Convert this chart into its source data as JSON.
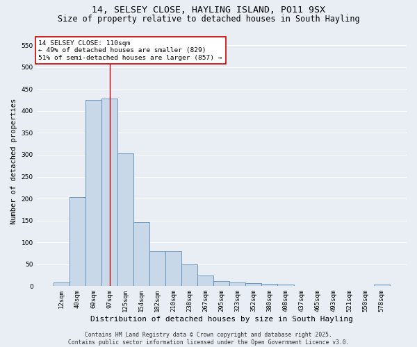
{
  "title_line1": "14, SELSEY CLOSE, HAYLING ISLAND, PO11 9SX",
  "title_line2": "Size of property relative to detached houses in South Hayling",
  "xlabel": "Distribution of detached houses by size in South Hayling",
  "ylabel": "Number of detached properties",
  "categories": [
    "12sqm",
    "40sqm",
    "69sqm",
    "97sqm",
    "125sqm",
    "154sqm",
    "182sqm",
    "210sqm",
    "238sqm",
    "267sqm",
    "295sqm",
    "323sqm",
    "352sqm",
    "380sqm",
    "408sqm",
    "437sqm",
    "465sqm",
    "493sqm",
    "521sqm",
    "550sqm",
    "578sqm"
  ],
  "values": [
    8,
    203,
    425,
    428,
    303,
    147,
    80,
    80,
    50,
    25,
    12,
    8,
    7,
    5,
    3,
    1,
    0,
    0,
    0,
    0,
    3
  ],
  "bar_color": "#c8d8e8",
  "bar_edge_color": "#5b8db8",
  "vline_x_index": 3,
  "vline_color": "#cc0000",
  "ylim": [
    0,
    570
  ],
  "yticks": [
    0,
    50,
    100,
    150,
    200,
    250,
    300,
    350,
    400,
    450,
    500,
    550
  ],
  "annotation_text": "14 SELSEY CLOSE: 110sqm\n← 49% of detached houses are smaller (829)\n51% of semi-detached houses are larger (857) →",
  "annotation_box_facecolor": "#ffffff",
  "annotation_box_edgecolor": "#cc0000",
  "footer_line1": "Contains HM Land Registry data © Crown copyright and database right 2025.",
  "footer_line2": "Contains public sector information licensed under the Open Government Licence v3.0.",
  "background_color": "#e8eef4",
  "grid_color": "#ffffff",
  "title_fontsize": 9.5,
  "subtitle_fontsize": 8.5,
  "tick_fontsize": 6.5,
  "xlabel_fontsize": 8,
  "ylabel_fontsize": 7.5,
  "annotation_fontsize": 6.8,
  "footer_fontsize": 5.8
}
